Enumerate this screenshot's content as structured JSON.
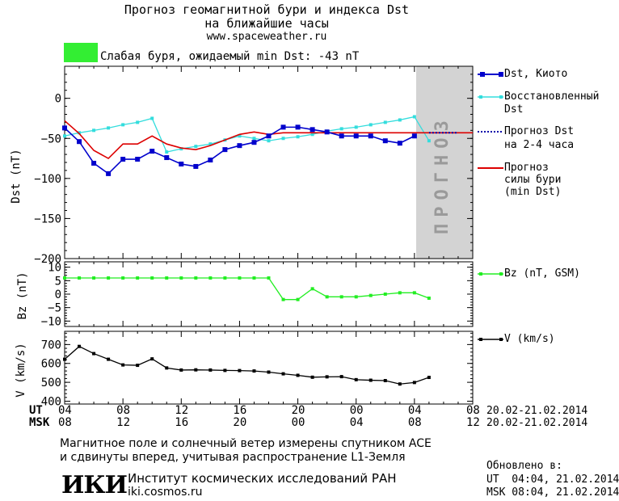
{
  "header": {
    "title_line1": "Прогноз геомагнитной бури и индекса Dst",
    "title_line2": "на ближайшие часы",
    "website": "www.spaceweather.ru"
  },
  "storm_status": {
    "text": "Слабая буря, ожидаемый min Dst: -43 nT",
    "color": "#33ee33"
  },
  "forecast_band_label": "ПРОГНОЗ",
  "legend": {
    "dst_kyoto": "Dst, Киото",
    "restored_line1": "Восстановленный",
    "restored_line2": "Dst",
    "forecast_dst_line1": "Прогноз Dst",
    "forecast_dst_line2": "на 2-4 часа",
    "storm_forecast_line1": "Прогноз",
    "storm_forecast_line2": "силы бури",
    "storm_forecast_line3": "(min Dst)",
    "bz": "Bz (nT, GSM)",
    "v": "V (km/s)"
  },
  "time_axis": {
    "ut_label": "UT",
    "msk_label": "MSK",
    "ut_ticks": [
      "04",
      "08",
      "12",
      "16",
      "20",
      "00",
      "04",
      "08"
    ],
    "msk_ticks": [
      "08",
      "12",
      "16",
      "20",
      "00",
      "04",
      "08",
      "12"
    ],
    "ut_range": "20.02-21.02.2014",
    "msk_range": "20.02-21.02.2014"
  },
  "footer": {
    "note_line1": "Магнитное поле и солнечный ветер измерены спутником ACE",
    "note_line2": "и сдвинуты вперед, учитывая распространение L1-Земля",
    "logo": "ИКИ",
    "institute": "Институт космических исследований РАН",
    "institute_site": "iki.cosmos.ru",
    "updated_label": "Обновлено в:",
    "updated_ut": "UT  04:04, 21.02.2014",
    "updated_msk": "MSK 08:04, 21.02.2014"
  },
  "chart_data": [
    {
      "type": "line",
      "panel": "dst",
      "ylabel": "Dst (nT)",
      "ylim": [
        -200,
        40
      ],
      "yticks": [
        0,
        -50,
        -100,
        -150,
        -200
      ],
      "xlim_hours_ut": [
        4,
        32
      ],
      "forecast_region_hours_ut": [
        28,
        32
      ],
      "colors": {
        "dst_kyoto": "#0000cc",
        "restored": "#33dddd",
        "forecast": "#0000aa",
        "storm": "#dd0000",
        "band": "#d3d3d3"
      },
      "series": [
        {
          "name": "Dst, Киото",
          "x": [
            4,
            5,
            6,
            7,
            8,
            9,
            10,
            11,
            12,
            13,
            14,
            15,
            16,
            17,
            18,
            19,
            20,
            21,
            22,
            23,
            24,
            25,
            26,
            27,
            28
          ],
          "values": [
            -37,
            -54,
            -81,
            -94,
            -76,
            -76,
            -66,
            -74,
            -82,
            -85,
            -77,
            -64,
            -59,
            -55,
            -47,
            -36,
            -36,
            -39,
            -42,
            -47,
            -47,
            -47,
            -53,
            -56,
            -47
          ]
        },
        {
          "name": "Восстановленный Dst",
          "x": [
            4,
            5,
            6,
            7,
            8,
            9,
            10,
            11,
            12,
            13,
            14,
            15,
            16,
            17,
            18,
            19,
            20,
            21,
            22,
            23,
            24,
            25,
            26,
            27,
            28,
            29
          ],
          "values": [
            -47,
            -43,
            -40,
            -37,
            -33,
            -30,
            -25,
            -67,
            -63,
            -60,
            -57,
            -52,
            -47,
            -50,
            -53,
            -50,
            -48,
            -45,
            -41,
            -38,
            -36,
            -33,
            -30,
            -27,
            -23,
            -53
          ]
        },
        {
          "name": "Прогноз Dst на 2-4 часа",
          "x": [
            29,
            31
          ],
          "values": [
            -43,
            -43
          ]
        },
        {
          "name": "Прогноз силы бури (min Dst)",
          "x": [
            4,
            5,
            6,
            7,
            8,
            9,
            10,
            11,
            12,
            13,
            14,
            15,
            16,
            17,
            18,
            19,
            20,
            21,
            22,
            23,
            24,
            25,
            26,
            27,
            28,
            29,
            30,
            31,
            32
          ],
          "values": [
            -28,
            -44,
            -65,
            -75,
            -57,
            -57,
            -47,
            -57,
            -62,
            -64,
            -59,
            -52,
            -45,
            -42,
            -45,
            -43,
            -43,
            -43,
            -43,
            -43,
            -43,
            -43,
            -43,
            -43,
            -43,
            -43,
            -43,
            -43,
            -43
          ]
        }
      ]
    },
    {
      "type": "line",
      "panel": "bz",
      "ylabel": "Bz (nT)",
      "ylim": [
        -12,
        12
      ],
      "yticks": [
        10,
        5,
        0,
        -5,
        -10
      ],
      "color": "#22ee22",
      "series": [
        {
          "name": "Bz (nT, GSM)",
          "x": [
            4,
            5,
            6,
            7,
            8,
            9,
            10,
            11,
            12,
            13,
            14,
            15,
            16,
            17,
            18,
            19,
            20,
            21,
            22,
            23,
            24,
            25,
            26,
            27,
            28,
            29
          ],
          "values": [
            6,
            6,
            6,
            6,
            6,
            6,
            6,
            6,
            6,
            6,
            6,
            6,
            6,
            6,
            6,
            -2,
            -2,
            2,
            -1,
            -1,
            -1,
            -0.5,
            0,
            0.5,
            0.5,
            -1.5
          ]
        }
      ]
    },
    {
      "type": "line",
      "panel": "v",
      "ylabel": "V (km/s)",
      "ylim": [
        385,
        770
      ],
      "yticks": [
        700,
        600,
        500,
        400
      ],
      "color": "#000000",
      "series": [
        {
          "name": "V (km/s)",
          "x": [
            4,
            5,
            6,
            7,
            8,
            9,
            10,
            11,
            12,
            13,
            14,
            15,
            16,
            17,
            18,
            19,
            20,
            21,
            22,
            23,
            24,
            25,
            26,
            27,
            28,
            29
          ],
          "values": [
            622,
            690,
            652,
            622,
            592,
            590,
            624,
            576,
            565,
            566,
            565,
            563,
            562,
            560,
            554,
            545,
            537,
            527,
            529,
            530,
            514,
            511,
            509,
            491,
            499,
            526
          ]
        }
      ]
    }
  ]
}
